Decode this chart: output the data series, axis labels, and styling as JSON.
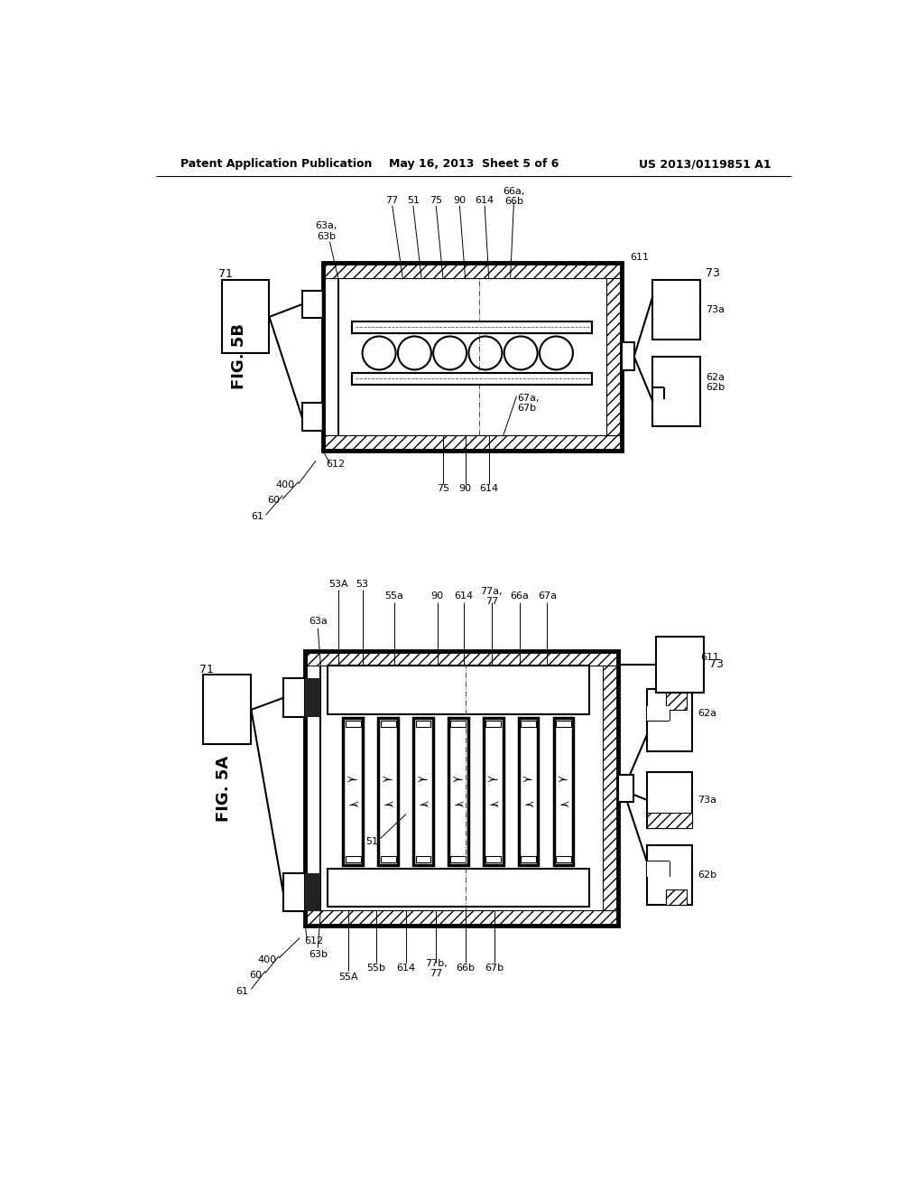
{
  "bg_color": "#ffffff",
  "header_left": "Patent Application Publication",
  "header_mid": "May 16, 2013  Sheet 5 of 6",
  "header_right": "US 2013/0119851 A1",
  "fig_label_5B": "FIG. 5B",
  "fig_label_5A": "FIG. 5A"
}
